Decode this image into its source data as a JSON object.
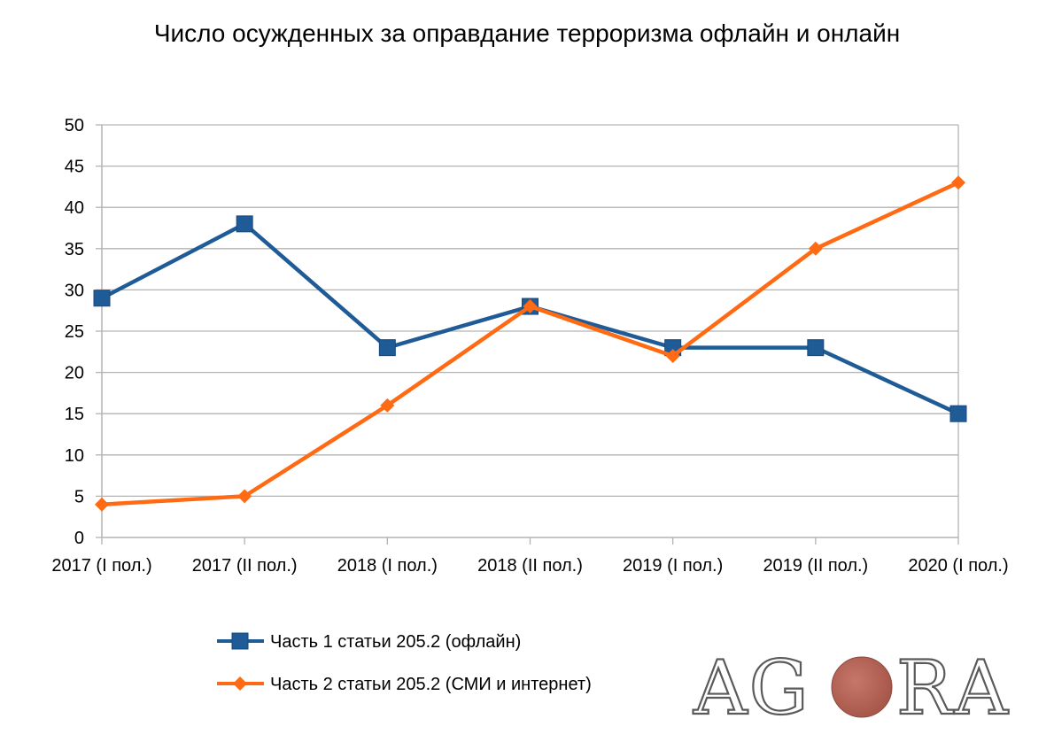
{
  "chart_data": {
    "type": "line",
    "title": "Число осужденных за оправдание терроризма офлайн и онлайн",
    "categories": [
      "2017 (I пол.)",
      "2017 (II пол.)",
      "2018 (I пол.)",
      "2018 (II пол.)",
      "2019 (I пол.)",
      "2019 (II пол.)",
      "2020 (I пол.)"
    ],
    "ylim": [
      0,
      50
    ],
    "yticks": [
      0,
      5,
      10,
      15,
      20,
      25,
      30,
      35,
      40,
      45,
      50
    ],
    "grid": true,
    "legend_position": "bottom",
    "series": [
      {
        "name": "Часть 1 статьи 205.2 (офлайн)",
        "color": "#1f5b96",
        "marker": "square",
        "values": [
          29,
          38,
          23,
          28,
          23,
          23,
          15
        ]
      },
      {
        "name": "Часть 2 статьи 205.2 (СМИ и интернет)",
        "color": "#ff6a13",
        "marker": "diamond",
        "values": [
          4,
          5,
          16,
          28,
          22,
          35,
          43
        ]
      }
    ]
  },
  "logo": {
    "text": "AGORA",
    "ball_color": "#a8584a"
  }
}
